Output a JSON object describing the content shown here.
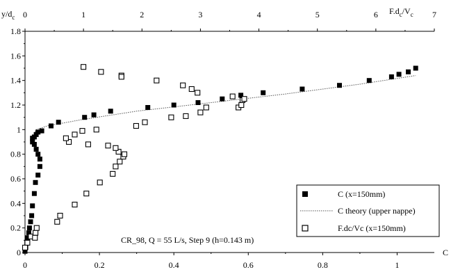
{
  "chart_data": {
    "type": "scatter",
    "title": "",
    "caption": "CR_98, Q = 55 L/s, Step 9 (h=0.143 m)",
    "ylabel": {
      "main": "y/d",
      "sub": "c"
    },
    "xlabel_bottom": "C",
    "xlabel_top": {
      "p1": "F.d",
      "sub1": "c",
      "p2": "/V",
      "sub2": "c"
    },
    "xlim_bottom": [
      0,
      1.1
    ],
    "xlim_top": [
      0,
      7
    ],
    "ylim": [
      0,
      1.8
    ],
    "x_ticks_bottom": [
      "0",
      "0.2",
      "0.4",
      "0.6",
      "0.8",
      "1"
    ],
    "x_ticks_top": [
      "0",
      "1",
      "2",
      "3",
      "4",
      "5",
      "6",
      "7"
    ],
    "y_ticks": [
      "0",
      "0.2",
      "0.4",
      "0.6",
      "0.8",
      "1",
      "1.2",
      "1.4",
      "1.6",
      "1.8"
    ],
    "legend_position": "bottom-right",
    "series": [
      {
        "name": "C (x=150mm)",
        "marker": "filled-square",
        "axis": "bottom",
        "points": [
          [
            0.0,
            0.01
          ],
          [
            0.002,
            0.04
          ],
          [
            0.005,
            0.08
          ],
          [
            0.007,
            0.12
          ],
          [
            0.01,
            0.16
          ],
          [
            0.012,
            0.2
          ],
          [
            0.015,
            0.25
          ],
          [
            0.018,
            0.3
          ],
          [
            0.02,
            0.38
          ],
          [
            0.025,
            0.48
          ],
          [
            0.028,
            0.57
          ],
          [
            0.035,
            0.63
          ],
          [
            0.04,
            0.7
          ],
          [
            0.04,
            0.76
          ],
          [
            0.035,
            0.8
          ],
          [
            0.03,
            0.84
          ],
          [
            0.025,
            0.88
          ],
          [
            0.02,
            0.9
          ],
          [
            0.02,
            0.93
          ],
          [
            0.025,
            0.94
          ],
          [
            0.03,
            0.96
          ],
          [
            0.035,
            0.98
          ],
          [
            0.045,
            0.99
          ],
          [
            0.07,
            1.03
          ],
          [
            0.09,
            1.06
          ],
          [
            0.16,
            1.1
          ],
          [
            0.185,
            1.12
          ],
          [
            0.23,
            1.15
          ],
          [
            0.33,
            1.18
          ],
          [
            0.4,
            1.2
          ],
          [
            0.465,
            1.22
          ],
          [
            0.53,
            1.25
          ],
          [
            0.58,
            1.28
          ],
          [
            0.64,
            1.3
          ],
          [
            0.745,
            1.33
          ],
          [
            0.845,
            1.36
          ],
          [
            0.925,
            1.4
          ],
          [
            0.985,
            1.43
          ],
          [
            1.005,
            1.45
          ],
          [
            1.03,
            1.47
          ],
          [
            1.05,
            1.5
          ]
        ]
      },
      {
        "name": "C theory (upper nappe)",
        "marker": "line",
        "axis": "bottom",
        "points": [
          [
            0.018,
            0.92
          ],
          [
            0.03,
            1.0
          ],
          [
            0.06,
            1.03
          ],
          [
            0.15,
            1.08
          ],
          [
            0.3,
            1.15
          ],
          [
            0.5,
            1.22
          ],
          [
            0.7,
            1.29
          ],
          [
            0.9,
            1.37
          ],
          [
            1.05,
            1.44
          ]
        ]
      },
      {
        "name": "F.dc/Vc (x=150mm)",
        "marker": "open-square",
        "axis": "top",
        "points": [
          [
            0.0,
            0.04
          ],
          [
            0.04,
            0.08
          ],
          [
            0.1,
            0.13
          ],
          [
            0.18,
            0.16
          ],
          [
            0.2,
            0.2
          ],
          [
            0.17,
            0.12
          ],
          [
            0.55,
            0.25
          ],
          [
            0.6,
            0.3
          ],
          [
            0.85,
            0.39
          ],
          [
            1.05,
            0.48
          ],
          [
            1.28,
            0.57
          ],
          [
            1.5,
            0.64
          ],
          [
            1.55,
            0.7
          ],
          [
            1.62,
            0.74
          ],
          [
            1.68,
            0.78
          ],
          [
            1.6,
            0.82
          ],
          [
            1.7,
            0.8
          ],
          [
            1.55,
            0.85
          ],
          [
            1.42,
            0.87
          ],
          [
            1.08,
            0.88
          ],
          [
            0.75,
            0.9
          ],
          [
            0.7,
            0.93
          ],
          [
            0.85,
            0.96
          ],
          [
            0.98,
            0.99
          ],
          [
            1.22,
            1.0
          ],
          [
            1.9,
            1.03
          ],
          [
            2.05,
            1.06
          ],
          [
            2.5,
            1.1
          ],
          [
            2.75,
            1.11
          ],
          [
            3.0,
            1.14
          ],
          [
            3.1,
            1.18
          ],
          [
            3.65,
            1.18
          ],
          [
            3.7,
            1.2
          ],
          [
            3.72,
            1.24
          ],
          [
            3.55,
            1.27
          ],
          [
            3.75,
            1.25
          ],
          [
            2.85,
            1.33
          ],
          [
            2.95,
            1.3
          ],
          [
            2.7,
            1.36
          ],
          [
            2.25,
            1.4
          ],
          [
            1.65,
            1.44
          ],
          [
            1.65,
            1.43
          ],
          [
            1.3,
            1.47
          ],
          [
            1.0,
            1.51
          ]
        ]
      }
    ]
  }
}
